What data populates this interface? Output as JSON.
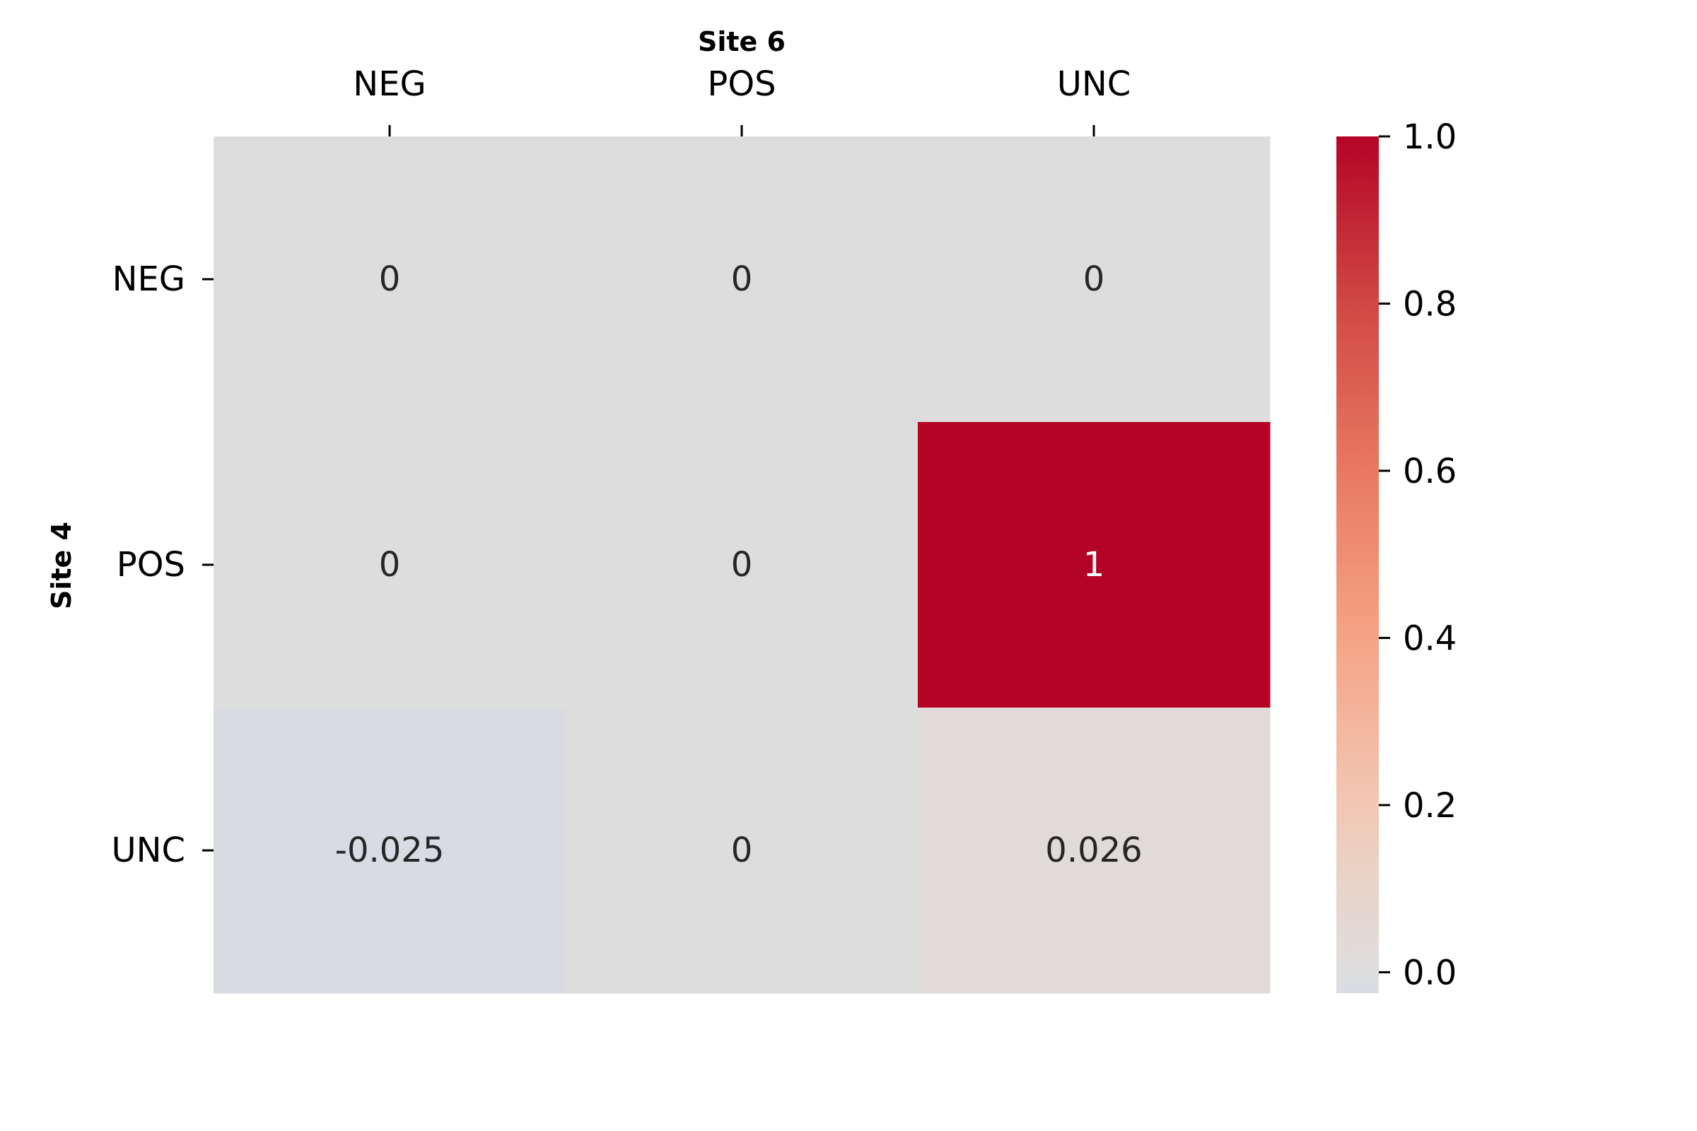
{
  "chart_data": {
    "type": "heatmap",
    "title": "",
    "xlabel": "Site 6",
    "ylabel": "Site 4",
    "x_categories": [
      "NEG",
      "POS",
      "UNC"
    ],
    "y_categories": [
      "NEG",
      "POS",
      "UNC"
    ],
    "values": [
      [
        0,
        0,
        0
      ],
      [
        0,
        0,
        1
      ],
      [
        -0.025,
        0,
        0.026
      ]
    ],
    "cell_labels": [
      [
        "0",
        "0",
        "0"
      ],
      [
        "0",
        "0",
        "1"
      ],
      [
        "-0.025",
        "0",
        "0.026"
      ]
    ],
    "colorbar": {
      "colormap": "coolwarm",
      "range": [
        -0.025,
        1.0
      ],
      "ticks": [
        0.0,
        0.2,
        0.4,
        0.6,
        0.8,
        1.0
      ],
      "tick_labels": [
        "0.0",
        "0.2",
        "0.4",
        "0.6",
        "0.8",
        "1.0"
      ],
      "position": "right"
    },
    "x_axis_position": "top",
    "grid": false
  }
}
